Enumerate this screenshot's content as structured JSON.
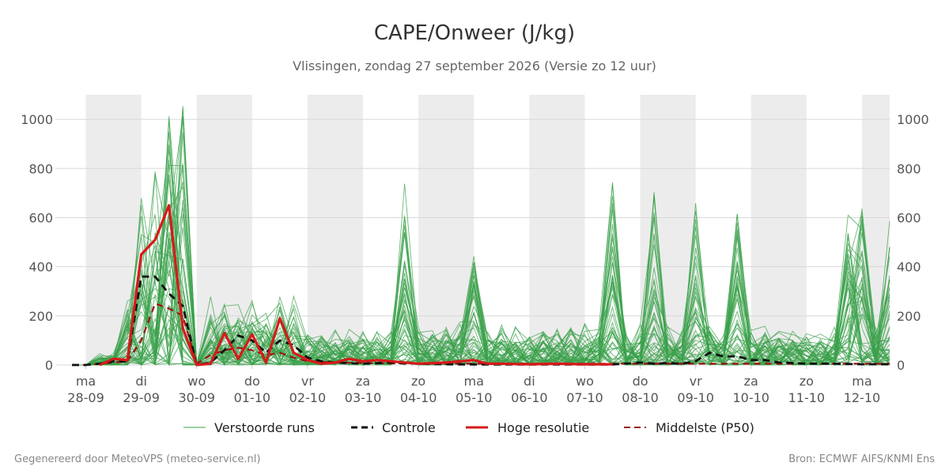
{
  "chart_data": {
    "type": "line",
    "title": "CAPE/Onweer (J/kg)",
    "subtitle": "Vlissingen, zondag 27 september 2026 (Versie zo 12 uur)",
    "ylim": [
      0,
      1100
    ],
    "yticks": [
      0,
      200,
      400,
      600,
      800,
      1000
    ],
    "xlim": [
      -0.25,
      14.5
    ],
    "x_unit": "days since ma 28-09 00 UTC",
    "x_ticks": [
      {
        "day": "ma",
        "date": "28-09"
      },
      {
        "day": "di",
        "date": "29-09"
      },
      {
        "day": "wo",
        "date": "30-09"
      },
      {
        "day": "do",
        "date": "01-10"
      },
      {
        "day": "vr",
        "date": "02-10"
      },
      {
        "day": "za",
        "date": "03-10"
      },
      {
        "day": "zo",
        "date": "04-10"
      },
      {
        "day": "ma",
        "date": "05-10"
      },
      {
        "day": "di",
        "date": "06-10"
      },
      {
        "day": "wo",
        "date": "07-10"
      },
      {
        "day": "do",
        "date": "08-10"
      },
      {
        "day": "vr",
        "date": "09-10"
      },
      {
        "day": "za",
        "date": "10-10"
      },
      {
        "day": "zo",
        "date": "11-10"
      },
      {
        "day": "ma",
        "date": "12-10"
      }
    ],
    "night_bands": [
      [
        0,
        1
      ],
      [
        2,
        3
      ],
      [
        4,
        5
      ],
      [
        6,
        7
      ],
      [
        8,
        9
      ],
      [
        10,
        11
      ],
      [
        12,
        13
      ],
      [
        14,
        14.5
      ]
    ],
    "grid": true,
    "legend_position": "bottom",
    "ensemble_member_count": 50,
    "series": [
      {
        "name": "Controle",
        "style": "dashed",
        "color": "#111111",
        "points": [
          [
            -0.25,
            0
          ],
          [
            0,
            0
          ],
          [
            0.25,
            5
          ],
          [
            0.5,
            15
          ],
          [
            0.75,
            15
          ],
          [
            1,
            360
          ],
          [
            1.25,
            360
          ],
          [
            1.5,
            290
          ],
          [
            1.75,
            240
          ],
          [
            2,
            0
          ],
          [
            2.25,
            10
          ],
          [
            2.5,
            60
          ],
          [
            2.75,
            120
          ],
          [
            3,
            100
          ],
          [
            3.25,
            50
          ],
          [
            3.5,
            100
          ],
          [
            3.75,
            80
          ],
          [
            4,
            30
          ],
          [
            4.25,
            15
          ],
          [
            4.5,
            10
          ],
          [
            5,
            5
          ],
          [
            5.5,
            10
          ],
          [
            6,
            5
          ],
          [
            6.5,
            3
          ],
          [
            7,
            2
          ],
          [
            8,
            2
          ],
          [
            9,
            2
          ],
          [
            9.5,
            2
          ],
          [
            10,
            10
          ],
          [
            10.25,
            5
          ],
          [
            10.5,
            8
          ],
          [
            10.75,
            5
          ],
          [
            11,
            15
          ],
          [
            11.25,
            50
          ],
          [
            11.5,
            35
          ],
          [
            11.75,
            35
          ],
          [
            12,
            20
          ],
          [
            12.25,
            20
          ],
          [
            12.5,
            10
          ],
          [
            12.75,
            8
          ],
          [
            13,
            5
          ],
          [
            13.5,
            5
          ],
          [
            14,
            3
          ],
          [
            14.5,
            3
          ]
        ]
      },
      {
        "name": "Hoge resolutie",
        "style": "solid",
        "color": "#d71a1a",
        "points": [
          [
            0.25,
            0
          ],
          [
            0.5,
            25
          ],
          [
            0.75,
            20
          ],
          [
            1,
            450
          ],
          [
            1.25,
            510
          ],
          [
            1.5,
            650
          ],
          [
            1.75,
            150
          ],
          [
            2,
            0
          ],
          [
            2.25,
            5
          ],
          [
            2.5,
            130
          ],
          [
            2.75,
            25
          ],
          [
            3,
            125
          ],
          [
            3.25,
            10
          ],
          [
            3.5,
            190
          ],
          [
            3.75,
            50
          ],
          [
            4,
            20
          ],
          [
            4.25,
            5
          ],
          [
            4.5,
            10
          ],
          [
            4.75,
            25
          ],
          [
            5,
            15
          ],
          [
            5.25,
            20
          ],
          [
            5.5,
            15
          ],
          [
            6,
            5
          ],
          [
            6.5,
            10
          ],
          [
            7,
            20
          ],
          [
            7.25,
            5
          ],
          [
            7.5,
            5
          ],
          [
            8,
            3
          ],
          [
            8.5,
            5
          ],
          [
            9,
            3
          ],
          [
            9.5,
            3
          ]
        ]
      },
      {
        "name": "Middelste (P50)",
        "style": "dashed",
        "color": "#a01010",
        "points": [
          [
            -0.25,
            0
          ],
          [
            0,
            0
          ],
          [
            0.25,
            5
          ],
          [
            0.5,
            10
          ],
          [
            0.75,
            15
          ],
          [
            1,
            100
          ],
          [
            1.25,
            250
          ],
          [
            1.5,
            230
          ],
          [
            1.75,
            200
          ],
          [
            2,
            5
          ],
          [
            2.25,
            40
          ],
          [
            2.5,
            60
          ],
          [
            2.75,
            70
          ],
          [
            3,
            60
          ],
          [
            3.25,
            40
          ],
          [
            3.5,
            50
          ],
          [
            3.75,
            30
          ],
          [
            4,
            15
          ],
          [
            4.5,
            10
          ],
          [
            5,
            8
          ],
          [
            6,
            5
          ],
          [
            7,
            5
          ],
          [
            8,
            5
          ],
          [
            9,
            5
          ],
          [
            10,
            5
          ],
          [
            11,
            5
          ],
          [
            12,
            5
          ],
          [
            13,
            5
          ],
          [
            14,
            5
          ],
          [
            14.5,
            5
          ]
        ]
      }
    ],
    "ensemble_peaks": [
      {
        "x": 1.25,
        "y": 870
      },
      {
        "x": 1.5,
        "y": 1080
      },
      {
        "x": 1.75,
        "y": 1030
      },
      {
        "x": 5.75,
        "y": 700
      },
      {
        "x": 7,
        "y": 435
      },
      {
        "x": 9.5,
        "y": 760
      },
      {
        "x": 10.25,
        "y": 710
      },
      {
        "x": 11,
        "y": 650
      },
      {
        "x": 11.75,
        "y": 620
      },
      {
        "x": 13.75,
        "y": 610
      },
      {
        "x": 14,
        "y": 655
      },
      {
        "x": 14.5,
        "y": 560
      }
    ]
  },
  "legend": {
    "items": [
      {
        "label": "Verstoorde runs",
        "color": "#3aa04a",
        "style": "thin"
      },
      {
        "label": "Controle",
        "color": "#111111",
        "style": "dashed"
      },
      {
        "label": "Hoge resolutie",
        "color": "#d71a1a",
        "style": "solid"
      },
      {
        "label": "Middelste (P50)",
        "color": "#a01010",
        "style": "dashed"
      }
    ]
  },
  "footer": {
    "left": "Gegenereerd door MeteoVPS (meteo-service.nl)",
    "right": "Bron: ECMWF AIFS/KNMI Ens"
  }
}
